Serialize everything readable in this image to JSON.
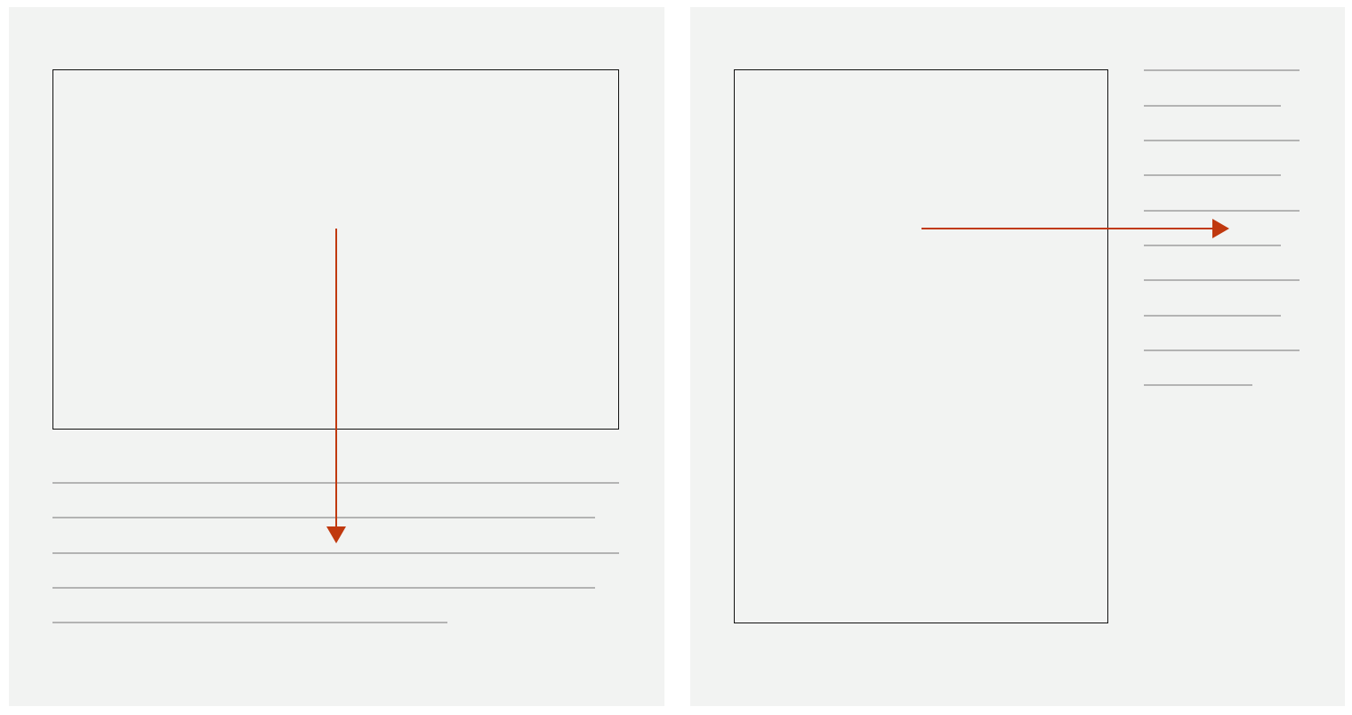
{
  "diagram": {
    "panels": [
      {
        "id": "left",
        "layout": "image-above-text",
        "text_lines": 5,
        "arrow_direction": "down"
      },
      {
        "id": "right",
        "layout": "image-beside-text",
        "text_lines": 10,
        "arrow_direction": "right"
      }
    ],
    "colors": {
      "panel_background": "#f2f3f2",
      "image_border": "#111111",
      "text_line": "#b3b3b3",
      "arrow": "#c0390f"
    }
  }
}
